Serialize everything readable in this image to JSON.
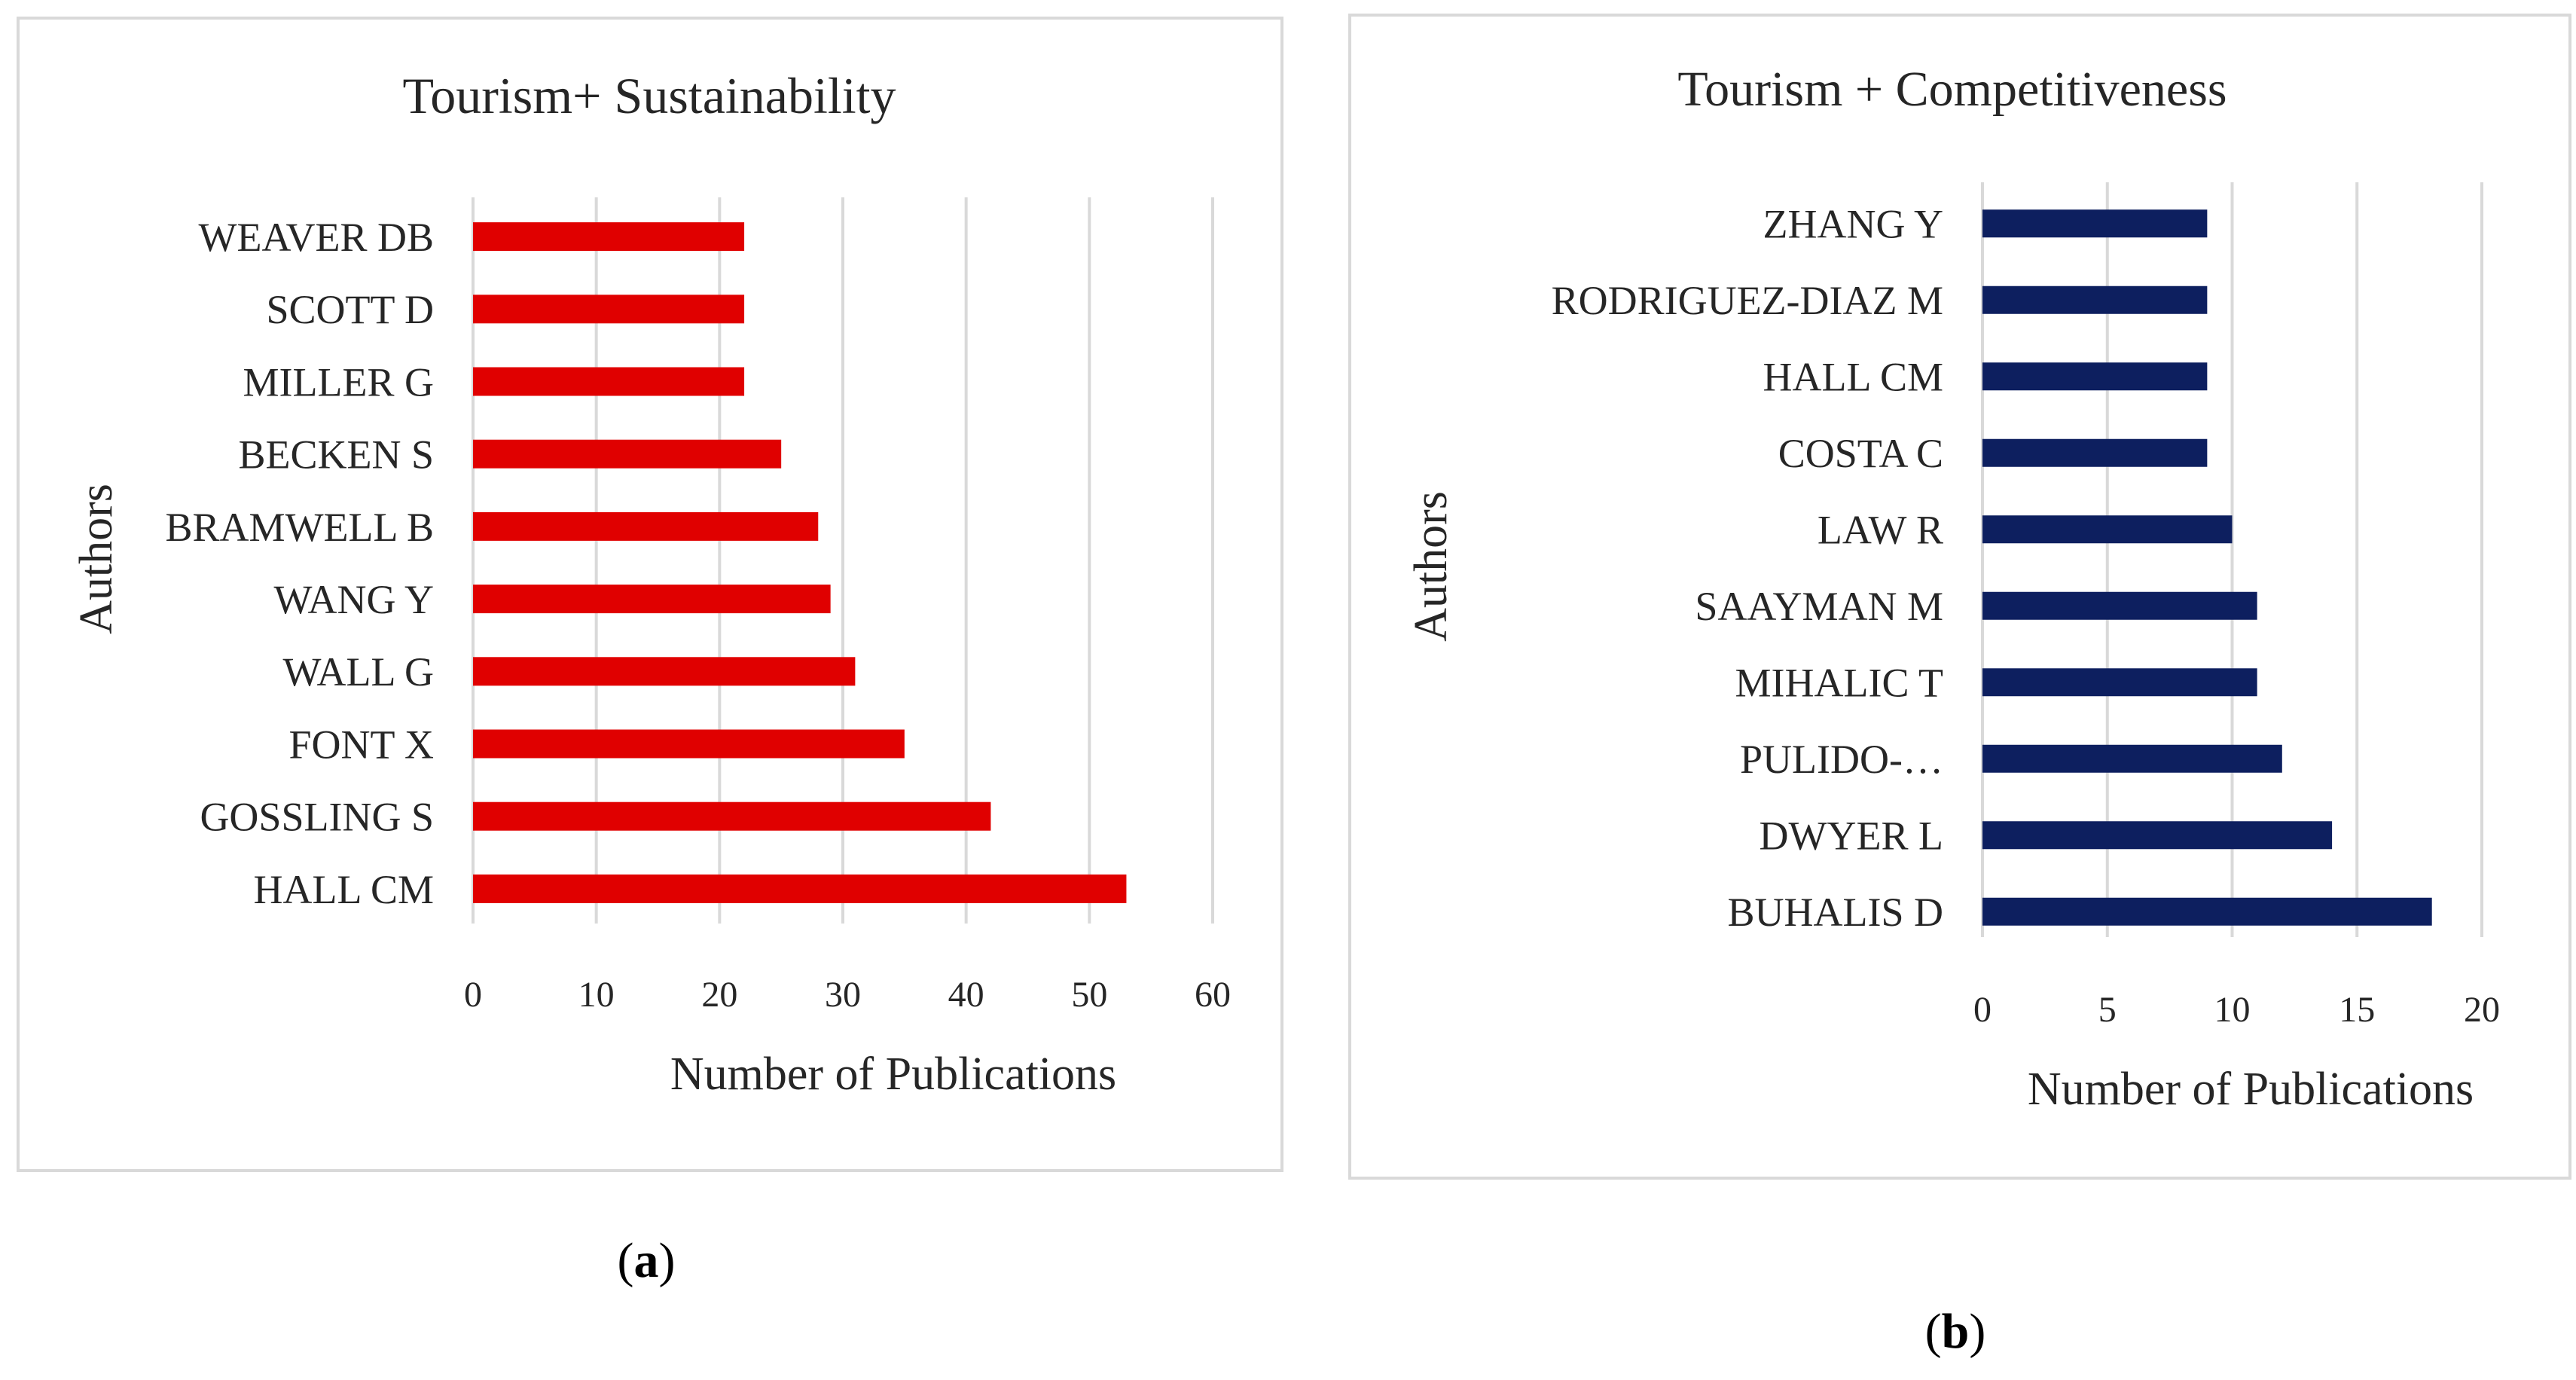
{
  "captions": {
    "a": "a",
    "b": "b"
  },
  "colors": {
    "series_a": "#e00000",
    "series_b": "#0d1f5f",
    "grid": "#d9d9d9",
    "text": "#262626"
  },
  "chart_data": [
    {
      "type": "bar",
      "orientation": "horizontal",
      "title": "Tourism+ Sustainability",
      "xlabel": "Number of Publications",
      "ylabel": "Authors",
      "categories": [
        "WEAVER DB",
        "SCOTT D",
        "MILLER G",
        "BECKEN S",
        "BRAMWELL B",
        "WANG Y",
        "WALL G",
        "FONT X",
        "GOSSLING S",
        "HALL CM"
      ],
      "values": [
        22,
        22,
        22,
        25,
        28,
        29,
        31,
        35,
        42,
        53
      ],
      "xlim": [
        0,
        60
      ],
      "xticks": [
        0,
        10,
        20,
        30,
        40,
        50,
        60
      ],
      "grid": true,
      "legend": "none"
    },
    {
      "type": "bar",
      "orientation": "horizontal",
      "title": "Tourism + Competitiveness",
      "xlabel": "Number of Publications",
      "ylabel": "Authors",
      "categories": [
        "ZHANG Y",
        "RODRIGUEZ-DIAZ M",
        "HALL CM",
        "COSTA C",
        "LAW R",
        "SAAYMAN M",
        "MIHALIC T",
        "PULIDO-…",
        "DWYER L",
        "BUHALIS D"
      ],
      "values": [
        9,
        9,
        9,
        9,
        10,
        11,
        11,
        12,
        14,
        18
      ],
      "xlim": [
        0,
        20
      ],
      "xticks": [
        0,
        5,
        10,
        15,
        20
      ],
      "grid": true,
      "legend": "none"
    }
  ]
}
